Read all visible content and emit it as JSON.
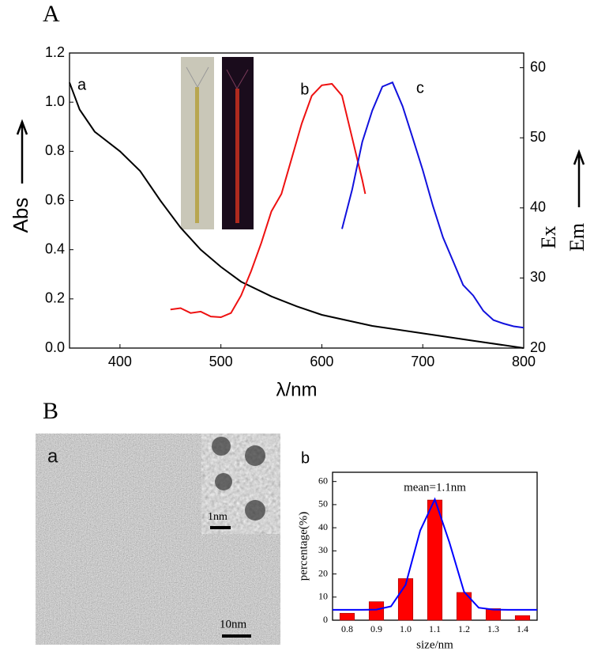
{
  "panels": [
    "A",
    "B"
  ],
  "image": {
    "label": "a",
    "inset_scale": "1nm",
    "scale": "10nm"
  },
  "chart_data": [
    {
      "type": "line",
      "xlabel": "λ/nm",
      "ylabel": "Abs",
      "y2labels": [
        "Ex",
        "Em"
      ],
      "xlim": [
        350,
        800
      ],
      "xticks": [
        400,
        500,
        600,
        700,
        800
      ],
      "ylim": [
        0,
        1.2
      ],
      "yticks": [
        {
          "value": 0,
          "label": "0.0"
        },
        0.2,
        0.4,
        0.6,
        0.8,
        {
          "value": 1,
          "label": "1.0"
        },
        1.2
      ],
      "y2lim": [
        20,
        62.1
      ],
      "y2ticks": [
        20,
        30,
        40,
        50,
        60
      ],
      "series": [
        {
          "name": "a",
          "color": "#000000",
          "x": [
            350,
            360,
            375,
            400,
            420,
            440,
            460,
            480,
            500,
            520,
            550,
            575,
            600,
            650,
            700,
            750,
            800
          ],
          "values": [
            1.08,
            0.97,
            0.88,
            0.8,
            0.72,
            0.6,
            0.49,
            0.4,
            0.33,
            0.27,
            0.21,
            0.17,
            0.135,
            0.09,
            0.06,
            0.03,
            0.0
          ]
        },
        {
          "name": "b",
          "color": "#ee1111",
          "axis": "y2",
          "x": [
            450,
            460,
            470,
            480,
            490,
            500,
            510,
            520,
            530,
            540,
            550,
            560,
            570,
            580,
            590,
            600,
            610,
            620,
            630,
            640,
            643
          ],
          "values": [
            25.5,
            25.7,
            25.0,
            25.2,
            24.5,
            24.4,
            25.0,
            27.5,
            31,
            35,
            39.5,
            42,
            47,
            52,
            56,
            57.5,
            57.7,
            56,
            50,
            44,
            42
          ]
        },
        {
          "name": "c",
          "color": "#1111dd",
          "axis": "y2",
          "x": [
            620,
            630,
            640,
            650,
            660,
            670,
            680,
            690,
            700,
            710,
            720,
            730,
            740,
            750,
            760,
            770,
            780,
            790,
            800
          ],
          "values": [
            37,
            42.6,
            49.4,
            53.9,
            57.3,
            57.9,
            54.5,
            50,
            45.4,
            40.3,
            35.8,
            32.4,
            29,
            27.5,
            25.3,
            24,
            23.5,
            23.1,
            22.9
          ]
        }
      ]
    },
    {
      "type": "bar",
      "label": "b",
      "annotation": "mean=1.1nm",
      "xlabel": "size/nm",
      "ylabel": "percentage(%)",
      "xlim": [
        0.75,
        1.45
      ],
      "xticks": [
        0.8,
        0.9,
        {
          "value": 1,
          "label": "1.0"
        },
        1.1,
        1.2,
        1.3,
        1.4
      ],
      "ylim": [
        0,
        64
      ],
      "yticks": [
        0,
        10,
        20,
        30,
        40,
        50,
        60
      ],
      "x": [
        0.8,
        0.9,
        1.0,
        1.1,
        1.2,
        1.3,
        1.4
      ],
      "series": [
        {
          "color": "#ff0000",
          "values": [
            3,
            8,
            18,
            52,
            12,
            5,
            2
          ]
        },
        {
          "type": "line",
          "color": "#0000ff",
          "x": [
            0.75,
            0.8,
            0.85,
            0.9,
            0.95,
            1.0,
            1.05,
            1.1,
            1.15,
            1.2,
            1.25,
            1.3,
            1.35,
            1.4,
            1.45
          ],
          "values": [
            4.5,
            4.5,
            4.5,
            4.6,
            6.0,
            15.3,
            38.8,
            52.3,
            33.6,
            12.3,
            5.4,
            4.6,
            4.5,
            4.5,
            4.5
          ]
        }
      ]
    }
  ]
}
